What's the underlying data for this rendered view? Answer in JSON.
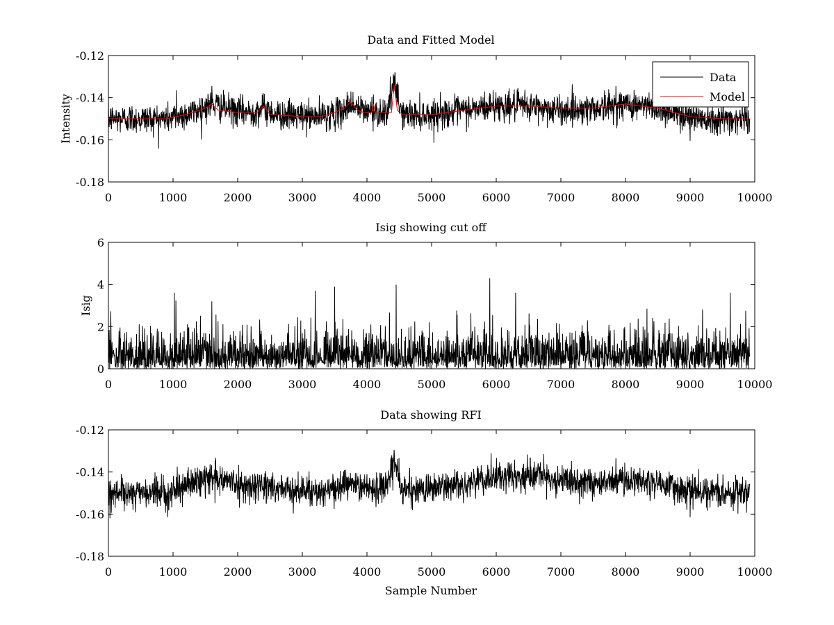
{
  "chart_data": [
    {
      "type": "line",
      "title": "Data and Fitted Model",
      "xlabel": "",
      "ylabel": "Intensity",
      "xlim": [
        0,
        10000
      ],
      "ylim": [
        -0.18,
        -0.12
      ],
      "xticks": [
        0,
        1000,
        2000,
        3000,
        4000,
        5000,
        6000,
        7000,
        8000,
        9000,
        10000
      ],
      "yticks": [
        -0.18,
        -0.16,
        -0.14,
        -0.12
      ],
      "xtick_labels": [
        "0",
        "1000",
        "2000",
        "3000",
        "4000",
        "5000",
        "6000",
        "7000",
        "8000",
        "9000",
        "10000"
      ],
      "ytick_labels": [
        "-0.18",
        "-0.16",
        "-0.14",
        "-0.12"
      ],
      "legend": {
        "position": "top-right",
        "entries": [
          "Data",
          "Model"
        ]
      },
      "series": [
        {
          "name": "Data",
          "color": "#000000",
          "kind": "noisy",
          "noise_amplitude": 0.0035,
          "baseline_x": [
            0,
            900,
            1300,
            1600,
            1900,
            2200,
            2400,
            2600,
            3200,
            3600,
            3750,
            3900,
            4300,
            4420,
            4550,
            5000,
            6000,
            6500,
            7000,
            7500,
            8000,
            8500,
            9000,
            9500,
            9920
          ],
          "baseline_y": [
            -0.15,
            -0.15,
            -0.147,
            -0.143,
            -0.146,
            -0.147,
            -0.145,
            -0.148,
            -0.149,
            -0.147,
            -0.143,
            -0.146,
            -0.147,
            -0.134,
            -0.148,
            -0.148,
            -0.144,
            -0.144,
            -0.146,
            -0.145,
            -0.143,
            -0.145,
            -0.149,
            -0.15,
            -0.15
          ],
          "spikes": [
            {
              "x": 1050,
              "y": -0.1365
            },
            {
              "x": 1600,
              "y": -0.1345
            },
            {
              "x": 3750,
              "y": -0.137
            },
            {
              "x": 4100,
              "y": -0.1385
            },
            {
              "x": 4420,
              "y": -0.1295
            },
            {
              "x": 4460,
              "y": -0.1335
            },
            {
              "x": 5950,
              "y": -0.1365
            },
            {
              "x": 7850,
              "y": -0.1345
            },
            {
              "x": 9000,
              "y": -0.1605
            }
          ]
        },
        {
          "name": "Model",
          "color": "#ff0000",
          "kind": "smooth",
          "x": [
            0,
            900,
            1200,
            1500,
            1600,
            1700,
            2000,
            2300,
            2400,
            2500,
            3000,
            3300,
            3500,
            3650,
            3750,
            3850,
            3950,
            4080,
            4100,
            4130,
            4300,
            4380,
            4420,
            4470,
            4550,
            5000,
            5500,
            6000,
            6500,
            7000,
            7500,
            8000,
            8500,
            9000,
            9500,
            9920
          ],
          "y": [
            -0.15,
            -0.15,
            -0.148,
            -0.145,
            -0.143,
            -0.146,
            -0.147,
            -0.147,
            -0.144,
            -0.148,
            -0.149,
            -0.149,
            -0.147,
            -0.145,
            -0.142,
            -0.146,
            -0.147,
            -0.147,
            -0.143,
            -0.147,
            -0.147,
            -0.147,
            -0.134,
            -0.146,
            -0.148,
            -0.148,
            -0.146,
            -0.144,
            -0.144,
            -0.145,
            -0.145,
            -0.143,
            -0.145,
            -0.149,
            -0.15,
            -0.15
          ]
        }
      ]
    },
    {
      "type": "line",
      "title": "Isig showing cut off",
      "xlabel": "",
      "ylabel": "Isig",
      "xlim": [
        0,
        10000
      ],
      "ylim": [
        0,
        6
      ],
      "xticks": [
        0,
        1000,
        2000,
        3000,
        4000,
        5000,
        6000,
        7000,
        8000,
        9000,
        10000
      ],
      "yticks": [
        0,
        2,
        4,
        6
      ],
      "xtick_labels": [
        "0",
        "1000",
        "2000",
        "3000",
        "4000",
        "5000",
        "6000",
        "7000",
        "8000",
        "9000",
        "10000"
      ],
      "ytick_labels": [
        "0",
        "2",
        "4",
        "6"
      ],
      "series": [
        {
          "name": "Isig",
          "color": "#000000",
          "kind": "abs-noise",
          "scale": 0.85,
          "baseline_x": [
            0,
            9920
          ],
          "baseline_y": [
            0,
            0
          ],
          "spikes": [
            {
              "x": 1020,
              "y": 3.6
            },
            {
              "x": 1600,
              "y": 3.2
            },
            {
              "x": 3200,
              "y": 3.7
            },
            {
              "x": 3500,
              "y": 3.9
            },
            {
              "x": 4450,
              "y": 4.0
            },
            {
              "x": 5900,
              "y": 4.3
            },
            {
              "x": 6300,
              "y": 3.6
            },
            {
              "x": 9620,
              "y": 3.6
            }
          ]
        }
      ]
    },
    {
      "type": "line",
      "title": "Data showing RFI",
      "xlabel": "Sample Number",
      "ylabel": "",
      "xlim": [
        0,
        10000
      ],
      "ylim": [
        -0.18,
        -0.12
      ],
      "xticks": [
        0,
        1000,
        2000,
        3000,
        4000,
        5000,
        6000,
        7000,
        8000,
        9000,
        10000
      ],
      "yticks": [
        -0.18,
        -0.16,
        -0.14,
        -0.12
      ],
      "xtick_labels": [
        "0",
        "1000",
        "2000",
        "3000",
        "4000",
        "5000",
        "6000",
        "7000",
        "8000",
        "9000",
        "10000"
      ],
      "ytick_labels": [
        "-0.18",
        "-0.16",
        "-0.14",
        "-0.12"
      ],
      "series": [
        {
          "name": "Data",
          "color": "#000000",
          "kind": "noisy",
          "noise_amplitude": 0.0035,
          "baseline_x": [
            0,
            900,
            1300,
            1600,
            1900,
            2200,
            2400,
            2600,
            3200,
            3600,
            3700,
            3850,
            4300,
            4420,
            4550,
            5000,
            6000,
            6500,
            7000,
            7500,
            8000,
            8500,
            9000,
            9500,
            9920
          ],
          "baseline_y": [
            -0.15,
            -0.15,
            -0.145,
            -0.142,
            -0.145,
            -0.147,
            -0.146,
            -0.148,
            -0.149,
            -0.148,
            -0.145,
            -0.147,
            -0.147,
            -0.134,
            -0.149,
            -0.148,
            -0.143,
            -0.142,
            -0.144,
            -0.145,
            -0.144,
            -0.145,
            -0.149,
            -0.15,
            -0.149
          ],
          "spikes": [
            {
              "x": 1650,
              "y": -0.1345
            },
            {
              "x": 4420,
              "y": -0.1295
            },
            {
              "x": 5920,
              "y": -0.131
            },
            {
              "x": 7850,
              "y": -0.1335
            },
            {
              "x": 9000,
              "y": -0.1615
            }
          ]
        }
      ]
    }
  ]
}
